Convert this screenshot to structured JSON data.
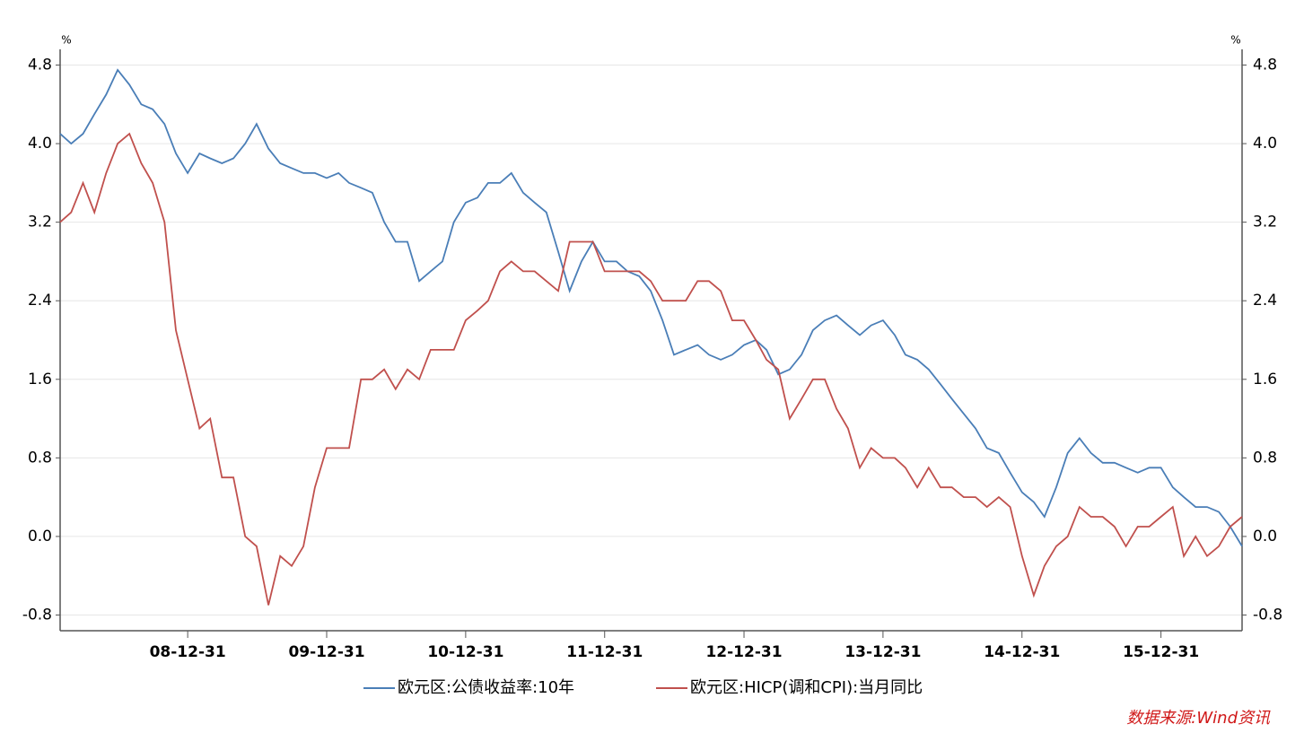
{
  "chart_data": {
    "type": "line",
    "y_unit": "%",
    "y2_unit": "%",
    "x": [
      "08-01-31",
      "08-02-29",
      "08-03-31",
      "08-04-30",
      "08-05-31",
      "08-06-30",
      "08-07-31",
      "08-08-31",
      "08-09-30",
      "08-10-31",
      "08-11-30",
      "08-12-31",
      "09-01-31",
      "09-02-28",
      "09-03-31",
      "09-04-30",
      "09-05-31",
      "09-06-30",
      "09-07-31",
      "09-08-31",
      "09-09-30",
      "09-10-31",
      "09-11-30",
      "09-12-31",
      "10-01-31",
      "10-02-28",
      "10-03-31",
      "10-04-30",
      "10-05-31",
      "10-06-30",
      "10-07-31",
      "10-08-31",
      "10-09-30",
      "10-10-31",
      "10-11-30",
      "10-12-31",
      "11-01-31",
      "11-02-28",
      "11-03-31",
      "11-04-30",
      "11-05-31",
      "11-06-30",
      "11-07-31",
      "11-08-31",
      "11-09-30",
      "11-10-31",
      "11-11-30",
      "11-12-31",
      "12-01-31",
      "12-02-29",
      "12-03-31",
      "12-04-30",
      "12-05-31",
      "12-06-30",
      "12-07-31",
      "12-08-31",
      "12-09-30",
      "12-10-31",
      "12-11-30",
      "12-12-31",
      "13-01-31",
      "13-02-28",
      "13-03-31",
      "13-04-30",
      "13-05-31",
      "13-06-30",
      "13-07-31",
      "13-08-31",
      "13-09-30",
      "13-10-31",
      "13-11-30",
      "13-12-31",
      "14-01-31",
      "14-02-28",
      "14-03-31",
      "14-04-30",
      "14-05-31",
      "14-06-30",
      "14-07-31",
      "14-08-31",
      "14-09-30",
      "14-10-31",
      "14-11-30",
      "14-12-31",
      "15-01-31",
      "15-02-28",
      "15-03-31",
      "15-04-30",
      "15-05-31",
      "15-06-30",
      "15-07-31",
      "15-08-31",
      "15-09-30",
      "15-10-31",
      "15-11-30",
      "15-12-31",
      "16-01-31",
      "16-02-29",
      "16-03-31",
      "16-04-30",
      "16-05-31",
      "16-06-30",
      "16-07-31"
    ],
    "xlim": [
      "08-01-31",
      "16-07-31"
    ],
    "xticks": [
      "08-12-31",
      "09-12-31",
      "10-12-31",
      "11-12-31",
      "12-12-31",
      "13-12-31",
      "14-12-31",
      "15-12-31"
    ],
    "ylim": [
      -0.96,
      4.96
    ],
    "yticks": [
      -0.8,
      {
        "value": 0,
        "label": "0.0"
      },
      0.8,
      1.6,
      2.4,
      3.2,
      {
        "value": 4,
        "label": "4.0"
      },
      4.8
    ],
    "y2lim": [
      -0.96,
      4.96
    ],
    "y2ticks": [
      -0.8,
      {
        "value": 0,
        "label": "0.0"
      },
      0.8,
      1.6,
      2.4,
      3.2,
      {
        "value": 4,
        "label": "4.0"
      },
      4.8
    ],
    "grid": true,
    "series": [
      {
        "name": "欧元区:公债收益率:10年",
        "color": "#4a7eb7",
        "values": [
          4.1,
          4.0,
          4.1,
          4.3,
          4.5,
          4.75,
          4.6,
          4.4,
          4.35,
          4.2,
          3.9,
          3.7,
          3.9,
          3.85,
          3.8,
          3.85,
          4.0,
          4.2,
          3.95,
          3.8,
          3.75,
          3.7,
          3.7,
          3.65,
          3.7,
          3.6,
          3.55,
          3.5,
          3.2,
          3.0,
          3.0,
          2.6,
          2.7,
          2.8,
          3.2,
          3.4,
          3.45,
          3.6,
          3.6,
          3.7,
          3.5,
          3.4,
          3.3,
          2.9,
          2.5,
          2.8,
          3.0,
          2.8,
          2.8,
          2.7,
          2.65,
          2.5,
          2.2,
          1.85,
          1.9,
          1.95,
          1.85,
          1.8,
          1.85,
          1.95,
          2.0,
          1.9,
          1.65,
          1.7,
          1.85,
          2.1,
          2.2,
          2.25,
          2.15,
          2.05,
          2.15,
          2.2,
          2.05,
          1.85,
          1.8,
          1.7,
          1.55,
          1.4,
          1.25,
          1.1,
          0.9,
          0.85,
          0.65,
          0.45,
          0.35,
          0.2,
          0.5,
          0.85,
          1.0,
          0.85,
          0.75,
          0.75,
          0.7,
          0.65,
          0.7,
          0.7,
          0.5,
          0.4,
          0.3,
          0.3,
          0.25,
          0.1,
          -0.1
        ]
      },
      {
        "name": "欧元区:HICP(调和CPI):当月同比",
        "color": "#c0504d",
        "axis": "y2",
        "values": [
          3.2,
          3.3,
          3.6,
          3.3,
          3.7,
          4.0,
          4.1,
          3.8,
          3.6,
          3.2,
          2.1,
          1.6,
          1.1,
          1.2,
          0.6,
          0.6,
          0.0,
          -0.1,
          -0.7,
          -0.2,
          -0.3,
          -0.1,
          0.5,
          0.9,
          0.9,
          0.9,
          1.6,
          1.6,
          1.7,
          1.5,
          1.7,
          1.6,
          1.9,
          1.9,
          1.9,
          2.2,
          2.3,
          2.4,
          2.7,
          2.8,
          2.7,
          2.7,
          2.6,
          2.5,
          3.0,
          3.0,
          3.0,
          2.7,
          2.7,
          2.7,
          2.7,
          2.6,
          2.4,
          2.4,
          2.4,
          2.6,
          2.6,
          2.5,
          2.2,
          2.2,
          2.0,
          1.8,
          1.7,
          1.2,
          1.4,
          1.6,
          1.6,
          1.3,
          1.1,
          0.7,
          0.9,
          0.8,
          0.8,
          0.7,
          0.5,
          0.7,
          0.5,
          0.5,
          0.4,
          0.4,
          0.3,
          0.4,
          0.3,
          -0.2,
          -0.6,
          -0.3,
          -0.1,
          0.0,
          0.3,
          0.2,
          0.2,
          0.1,
          -0.1,
          0.1,
          0.1,
          0.2,
          0.3,
          -0.2,
          0.0,
          -0.2,
          -0.1,
          0.1,
          0.2
        ]
      }
    ],
    "source": "数据来源:Wind资讯"
  }
}
